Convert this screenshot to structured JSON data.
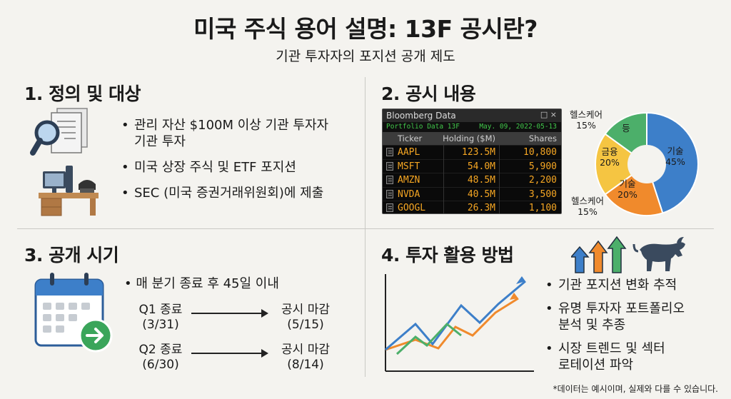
{
  "header": {
    "title": "미국 주식 용어 설명: 13F 공시란?",
    "subtitle": "기관 투자자의 포지션 공개 제도"
  },
  "section1": {
    "title": "1. 정의 및 대상",
    "bullets": [
      "관리 자산 $100M 이상 기관 투자자\n기관 투자",
      "미국 상장 주식 및 ETF 포지션",
      "SEC (미국 증권거래위원회)에 제출"
    ]
  },
  "section2": {
    "title": "2. 공시 내용",
    "terminal": {
      "window_title": "Bloomberg Data",
      "window_controls": "□ ×",
      "subtitle": "Portfolio Data 13F",
      "date": "May. 09, 2022-05-13",
      "columns": [
        "Ticker",
        "Holding ($M)",
        "Shares"
      ],
      "rows": [
        {
          "ticker": "AAPL",
          "holding": "123.5M",
          "shares": "10,800"
        },
        {
          "ticker": "MSFT",
          "holding": "54.0M",
          "shares": "5,900"
        },
        {
          "ticker": "AMZN",
          "holding": "48.5M",
          "shares": "2,200"
        },
        {
          "ticker": "NVDA",
          "holding": "40.5M",
          "shares": "3,500"
        },
        {
          "ticker": "GOOGL",
          "holding": "26.3M",
          "shares": "1,100"
        }
      ]
    },
    "pie": {
      "slices": [
        {
          "label": "기술",
          "pct": "45%",
          "value": 45,
          "color": "#3d7fc9"
        },
        {
          "label": "기술",
          "pct": "20%",
          "value": 20,
          "color": "#f08a2c"
        },
        {
          "label": "금융",
          "pct": "20%",
          "value": 20,
          "color": "#f5c542"
        },
        {
          "label": "등",
          "pct": "",
          "value": 15,
          "color": "#4caf6a"
        }
      ],
      "outer_labels": [
        {
          "label": "헬스케어",
          "pct": "15%"
        },
        {
          "label": "헬스케어",
          "pct": "15%"
        }
      ]
    }
  },
  "section3": {
    "title": "3. 공개 시기",
    "bullet": "매 분기 종료 후 45일 이내",
    "rows": [
      {
        "from": "Q1 종료",
        "from_date": "(3/31)",
        "to": "공시 마감",
        "to_date": "(5/15)"
      },
      {
        "from": "Q2 종료",
        "from_date": "(6/30)",
        "to": "공시 마감",
        "to_date": "(8/14)"
      }
    ]
  },
  "section4": {
    "title": "4. 투자 활용 방법",
    "bullets": [
      "기관 포지션 변화 추적",
      "유명 투자자 포트폴리오\n분석 및 추종",
      "시장 트렌드 및 섹터\n로테이션 파악"
    ],
    "colors": {
      "blue": "#3d7fc9",
      "orange": "#f08a2c",
      "green": "#4caf6a"
    }
  },
  "footnote": "*데이터는 예시이며, 실제와 다를 수 있습니다."
}
